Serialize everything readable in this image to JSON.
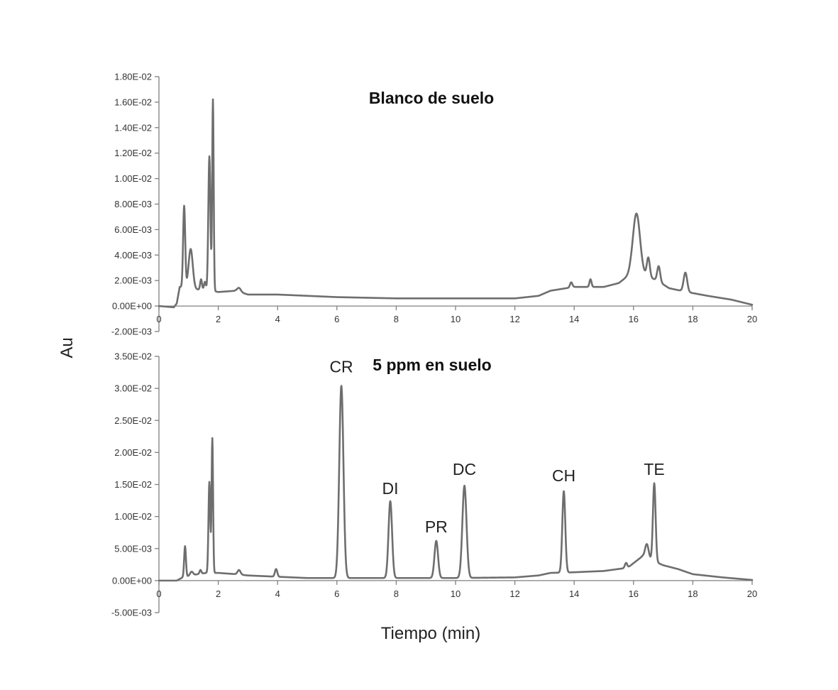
{
  "ylabel": "Au",
  "xlabel": "Tiempo (min)",
  "chart_data": [
    {
      "type": "line",
      "title": "Blanco de suelo",
      "xlim": [
        0,
        20
      ],
      "ylim": [
        -0.002,
        0.018
      ],
      "x_ticks": [
        "0",
        "2",
        "4",
        "6",
        "8",
        "10",
        "12",
        "14",
        "16",
        "18",
        "20"
      ],
      "y_ticks": [
        "-2.00E-03",
        "0.00E+00",
        "2.00E-03",
        "4.00E-03",
        "6.00E-03",
        "8.00E-03",
        "1.00E-02",
        "1.20E-02",
        "1.40E-02",
        "1.60E-02",
        "1.80E-02"
      ],
      "trace": {
        "baseline": [
          [
            0,
            0.0
          ],
          [
            0.5,
            -0.0001
          ],
          [
            0.6,
            0.0002
          ],
          [
            0.7,
            0.0015
          ],
          [
            1.3,
            0.0013
          ],
          [
            1.6,
            0.0013
          ],
          [
            2.0,
            0.0011
          ],
          [
            2.6,
            0.0012
          ],
          [
            3.0,
            0.0009
          ],
          [
            4.0,
            0.0009
          ],
          [
            5.0,
            0.0008
          ],
          [
            6.0,
            0.0007
          ],
          [
            8.0,
            0.0006
          ],
          [
            10.0,
            0.0006
          ],
          [
            12.0,
            0.0006
          ],
          [
            12.8,
            0.0008
          ],
          [
            13.2,
            0.0012
          ],
          [
            14.0,
            0.0015
          ],
          [
            15.0,
            0.0015
          ],
          [
            15.5,
            0.0018
          ],
          [
            15.9,
            0.0025
          ],
          [
            16.4,
            0.0024
          ],
          [
            16.8,
            0.002
          ],
          [
            17.2,
            0.0014
          ],
          [
            17.8,
            0.0011
          ],
          [
            18.5,
            0.0008
          ],
          [
            19.3,
            0.0005
          ],
          [
            20.0,
            0.0001
          ]
        ],
        "peaks": [
          {
            "rt": 0.85,
            "height": 0.0064,
            "width": 0.035
          },
          {
            "rt": 1.07,
            "height": 0.0031,
            "width": 0.07
          },
          {
            "rt": 1.42,
            "height": 0.0008,
            "width": 0.03
          },
          {
            "rt": 1.55,
            "height": 0.0006,
            "width": 0.03
          },
          {
            "rt": 1.7,
            "height": 0.0105,
            "width": 0.035
          },
          {
            "rt": 1.82,
            "height": 0.015,
            "width": 0.025
          },
          {
            "rt": 2.7,
            "height": 0.0003,
            "width": 0.06
          },
          {
            "rt": 13.9,
            "height": 0.0004,
            "width": 0.04
          },
          {
            "rt": 14.55,
            "height": 0.0006,
            "width": 0.035
          },
          {
            "rt": 16.1,
            "height": 0.0048,
            "width": 0.12
          },
          {
            "rt": 16.5,
            "height": 0.0015,
            "width": 0.05
          },
          {
            "rt": 16.85,
            "height": 0.0012,
            "width": 0.05
          },
          {
            "rt": 17.75,
            "height": 0.0015,
            "width": 0.06
          }
        ]
      }
    },
    {
      "type": "line",
      "title": "5 ppm en suelo",
      "xlim": [
        0,
        20
      ],
      "ylim": [
        -0.005,
        0.035
      ],
      "x_ticks": [
        "0",
        "2",
        "4",
        "6",
        "8",
        "10",
        "12",
        "14",
        "16",
        "18",
        "20"
      ],
      "y_ticks": [
        "-5.00E-03",
        "0.00E+00",
        "5.00E-03",
        "1.00E-02",
        "1.50E-02",
        "2.00E-02",
        "2.50E-02",
        "3.00E-02",
        "3.50E-02"
      ],
      "peak_labels": [
        {
          "text": "CR",
          "rt": 6.15,
          "y": 0.0325
        },
        {
          "text": "DI",
          "rt": 7.8,
          "y": 0.0135
        },
        {
          "text": "PR",
          "rt": 9.35,
          "y": 0.0075
        },
        {
          "text": "DC",
          "rt": 10.3,
          "y": 0.0165
        },
        {
          "text": "CH",
          "rt": 13.65,
          "y": 0.0155
        },
        {
          "text": "TE",
          "rt": 16.7,
          "y": 0.0165
        }
      ],
      "trace": {
        "baseline": [
          [
            0,
            0.0
          ],
          [
            0.6,
            0.0
          ],
          [
            0.8,
            0.0005
          ],
          [
            1.3,
            0.001
          ],
          [
            1.6,
            0.0012
          ],
          [
            2.0,
            0.0012
          ],
          [
            2.6,
            0.001
          ],
          [
            3.0,
            0.0008
          ],
          [
            4.0,
            0.0006
          ],
          [
            5.0,
            0.0004
          ],
          [
            6.0,
            0.0004
          ],
          [
            8.0,
            0.0004
          ],
          [
            10.0,
            0.0004
          ],
          [
            12.0,
            0.0005
          ],
          [
            12.8,
            0.0008
          ],
          [
            13.2,
            0.0012
          ],
          [
            14.0,
            0.0013
          ],
          [
            15.0,
            0.0015
          ],
          [
            15.8,
            0.002
          ],
          [
            16.3,
            0.0038
          ],
          [
            16.6,
            0.0032
          ],
          [
            17.0,
            0.0024
          ],
          [
            17.5,
            0.0018
          ],
          [
            18.0,
            0.001
          ],
          [
            19.0,
            0.0005
          ],
          [
            20.0,
            0.0001
          ]
        ],
        "peaks": [
          {
            "rt": 0.88,
            "height": 0.0048,
            "width": 0.03
          },
          {
            "rt": 1.1,
            "height": 0.0006,
            "width": 0.05
          },
          {
            "rt": 1.4,
            "height": 0.0006,
            "width": 0.03
          },
          {
            "rt": 1.7,
            "height": 0.0142,
            "width": 0.03
          },
          {
            "rt": 1.8,
            "height": 0.021,
            "width": 0.025
          },
          {
            "rt": 2.7,
            "height": 0.0007,
            "width": 0.05
          },
          {
            "rt": 3.95,
            "height": 0.0012,
            "width": 0.04
          },
          {
            "rt": 6.15,
            "height": 0.03,
            "width": 0.07
          },
          {
            "rt": 7.8,
            "height": 0.012,
            "width": 0.06
          },
          {
            "rt": 9.35,
            "height": 0.0058,
            "width": 0.06
          },
          {
            "rt": 10.3,
            "height": 0.0144,
            "width": 0.07
          },
          {
            "rt": 13.65,
            "height": 0.0127,
            "width": 0.05
          },
          {
            "rt": 15.75,
            "height": 0.0008,
            "width": 0.04
          },
          {
            "rt": 16.45,
            "height": 0.0022,
            "width": 0.06
          },
          {
            "rt": 16.7,
            "height": 0.0122,
            "width": 0.045
          }
        ]
      }
    }
  ]
}
